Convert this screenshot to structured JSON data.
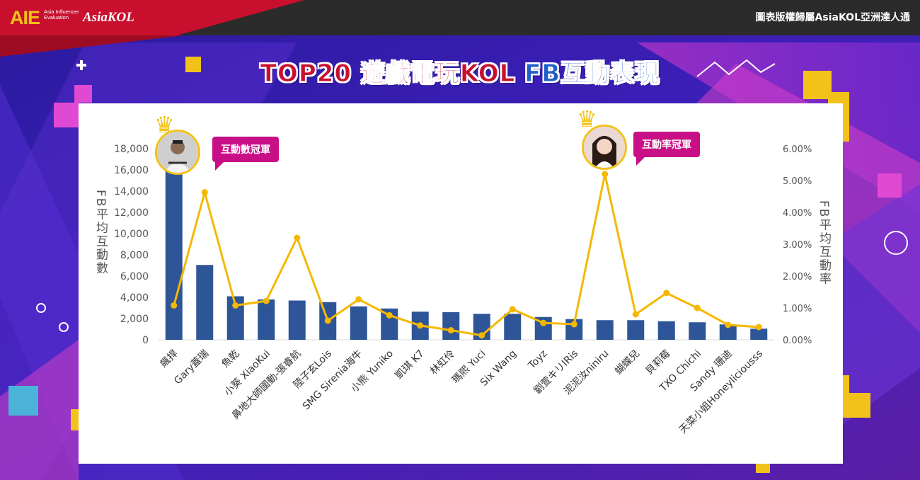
{
  "header": {
    "logo_mark": "AIE",
    "logo_subtext": "Asia Influencer Evaluation",
    "brand": "AsiaKOL",
    "copyright": "圖表版權歸屬AsiaKOL亞洲達人通"
  },
  "title": {
    "part1": "TOP20 遊戲電玩KOL",
    "part2": "FB互動表現"
  },
  "badges": {
    "left": "互動數冠軍",
    "right": "互動率冠軍"
  },
  "colors": {
    "bar": "#2e5597",
    "line": "#f5b800",
    "accent_magenta": "#c90f86",
    "title_red": "#c8102e",
    "title_blue": "#1f5fc7"
  },
  "chart_data": {
    "type": "bar",
    "categories": [
      "飆捍",
      "Gary蓋瑞",
      "魚乾",
      "小葵 XiaoKui",
      "鼻地大師國動-張睿航",
      "陸子玄Lois",
      "SMG Sirenia海牛",
      "小熊 Yuniko",
      "凱琪 K7",
      "林虹伶",
      "瑪熙 Yuci",
      "Six Wang",
      "Toyz",
      "劉萱キリIRis",
      "泥泥汝niniru",
      "蝴蝶兒",
      "貝莉莓",
      "TXO Chichi",
      "Sandy 珊迪",
      "天菜小姐Honeyliciousss"
    ],
    "series": [
      {
        "axis": "left",
        "kind": "bar",
        "values": [
          17500,
          7050,
          4100,
          3800,
          3700,
          3550,
          3150,
          2950,
          2650,
          2600,
          2450,
          2450,
          2150,
          1950,
          1850,
          1850,
          1750,
          1650,
          1450,
          1050
        ]
      },
      {
        "axis": "right",
        "kind": "line",
        "values": [
          1.08,
          4.63,
          1.08,
          1.22,
          3.2,
          0.6,
          1.27,
          0.77,
          0.45,
          0.3,
          0.14,
          0.96,
          0.53,
          0.49,
          5.2,
          0.8,
          1.47,
          1.0,
          0.47,
          0.4
        ]
      }
    ],
    "ylabel": "FB平均互動數",
    "y2label": "FB平均互動率",
    "ylim": [
      0,
      18000
    ],
    "y_ticks": [
      "0",
      "2,000",
      "4,000",
      "6,000",
      "8,000",
      "10,000",
      "12,000",
      "14,000",
      "16,000",
      "18,000"
    ],
    "y2lim": [
      0,
      6
    ],
    "y2_ticks": [
      "0.00%",
      "1.00%",
      "2.00%",
      "3.00%",
      "4.00%",
      "5.00%",
      "6.00%"
    ],
    "grid": false,
    "legend": "none"
  }
}
